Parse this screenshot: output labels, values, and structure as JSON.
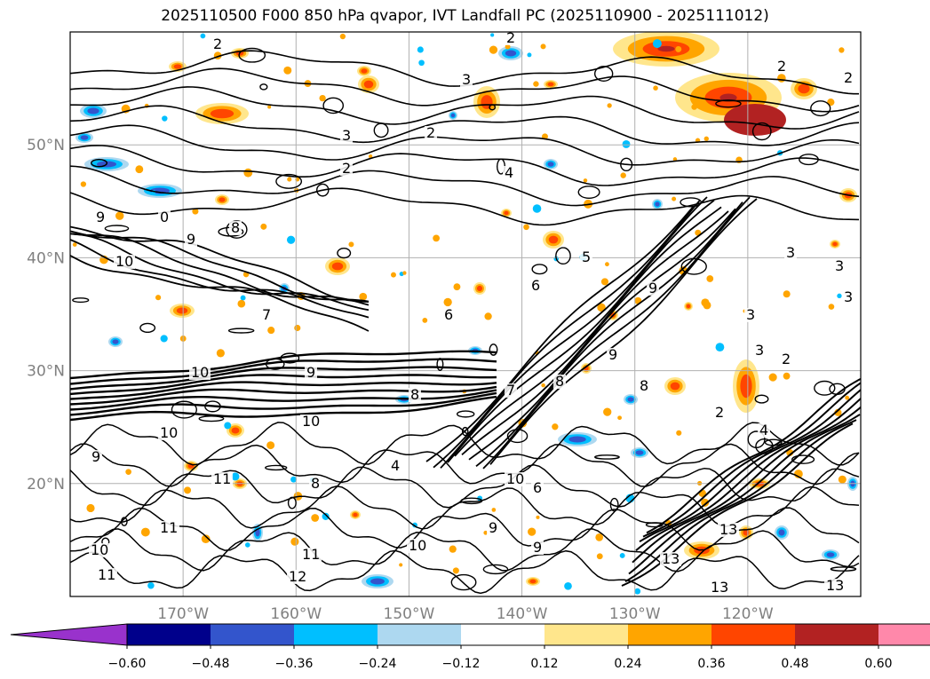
{
  "title": "2025110500 F000 850 hPa qvapor, IVT Landfall PC (2025110900 - 2025111012)",
  "chart_data": {
    "type": "heatmap",
    "title": "2025110500 F000 850 hPa qvapor, IVT Landfall PC (2025110900 - 2025111012)",
    "projection": "lat-lon map",
    "lon_range": [
      180,
      110
    ],
    "lat_range": [
      10,
      60
    ],
    "lat_ticks": [
      "20°N",
      "30°N",
      "40°N",
      "50°N"
    ],
    "lon_ticks": [
      "170°W",
      "160°W",
      "150°W",
      "140°W",
      "130°W",
      "120°W"
    ],
    "grid": true,
    "colorbar": {
      "orientation": "horizontal",
      "extend": "both",
      "levels": [
        -0.6,
        -0.48,
        -0.36,
        -0.24,
        -0.12,
        0.12,
        0.24,
        0.36,
        0.48,
        0.6
      ],
      "tick_labels": [
        "−0.60",
        "−0.48",
        "−0.36",
        "−0.24",
        "−0.12",
        "0.12",
        "0.24",
        "0.36",
        "0.48",
        "0.60"
      ],
      "colors": [
        "#9932cc",
        "#00008b",
        "#3355cc",
        "#00bfff",
        "#add8f0",
        "#ffffff",
        "#ffe68c",
        "#ffa500",
        "#ff4500",
        "#b22222",
        "#ff88aa"
      ]
    },
    "contour_labels_visible": [
      "2",
      "3",
      "4",
      "5",
      "6",
      "7",
      "8",
      "9",
      "10",
      "11",
      "12",
      "13"
    ],
    "notes_colors": {
      "contour": "#000000",
      "coast": "#000000",
      "grid": "#b0b0b0"
    }
  }
}
